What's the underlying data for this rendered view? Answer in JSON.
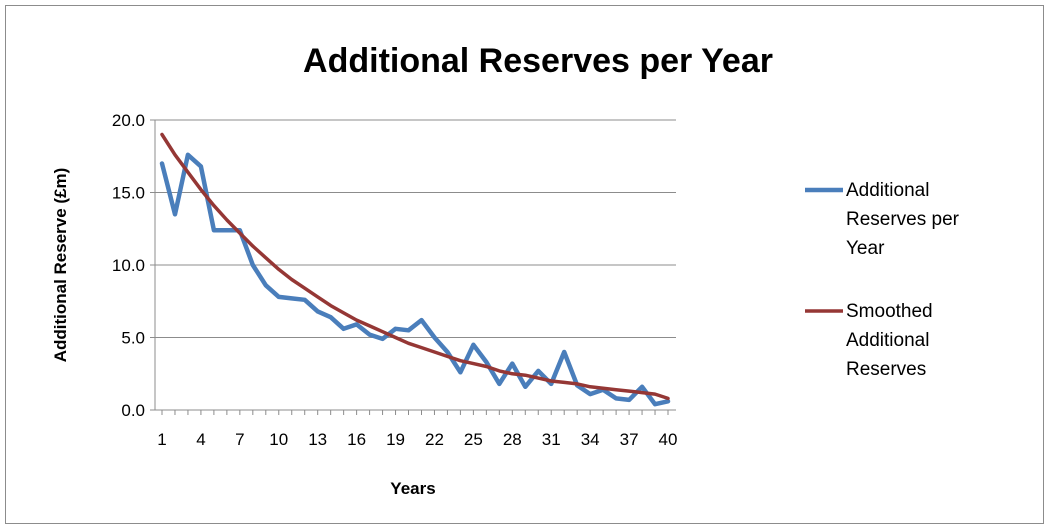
{
  "chart_data": {
    "type": "line",
    "title": "Additional Reserves per Year",
    "xlabel": "Years",
    "ylabel": "Additional Reserve (£m)",
    "ylim": [
      0,
      20
    ],
    "yticks": [
      "0.0",
      "5.0",
      "10.0",
      "15.0",
      "20.0"
    ],
    "y_tick_values": [
      0,
      5,
      10,
      15,
      20
    ],
    "x_tick_labels": [
      "1",
      "4",
      "7",
      "10",
      "13",
      "16",
      "19",
      "22",
      "25",
      "28",
      "31",
      "34",
      "37",
      "40"
    ],
    "x_tick_values": [
      1,
      4,
      7,
      10,
      13,
      16,
      19,
      22,
      25,
      28,
      31,
      34,
      37,
      40
    ],
    "xlim": [
      1,
      40
    ],
    "grid": true,
    "legend_position": "right",
    "x": [
      1,
      2,
      3,
      4,
      5,
      6,
      7,
      8,
      9,
      10,
      11,
      12,
      13,
      14,
      15,
      16,
      17,
      18,
      19,
      20,
      21,
      22,
      23,
      24,
      25,
      26,
      27,
      28,
      29,
      30,
      31,
      32,
      33,
      34,
      35,
      36,
      37,
      38,
      39,
      40
    ],
    "series": [
      {
        "name": "Additional Reserves per Year",
        "color": "#4a7ebb",
        "values": [
          17.0,
          13.5,
          17.6,
          16.8,
          12.4,
          12.4,
          12.4,
          10.0,
          8.6,
          7.8,
          7.7,
          7.6,
          6.8,
          6.4,
          5.6,
          5.9,
          5.2,
          4.9,
          5.6,
          5.5,
          6.2,
          5.0,
          4.0,
          2.6,
          4.5,
          3.3,
          1.8,
          3.2,
          1.6,
          2.7,
          1.8,
          4.0,
          1.7,
          1.1,
          1.4,
          0.8,
          0.7,
          1.6,
          0.4,
          0.6
        ]
      },
      {
        "name": "Smoothed Additional Reserves",
        "color": "#953735",
        "values": [
          19.0,
          17.6,
          16.4,
          15.2,
          14.1,
          13.1,
          12.2,
          11.3,
          10.5,
          9.7,
          9.0,
          8.4,
          7.8,
          7.2,
          6.7,
          6.2,
          5.8,
          5.4,
          5.0,
          4.6,
          4.3,
          4.0,
          3.7,
          3.4,
          3.2,
          3.0,
          2.7,
          2.5,
          2.4,
          2.2,
          2.0,
          1.9,
          1.8,
          1.6,
          1.5,
          1.4,
          1.3,
          1.2,
          1.1,
          0.8
        ]
      }
    ],
    "legend_lines": [
      [
        "Additional",
        "Reserves per",
        "Year"
      ],
      [
        "Smoothed",
        "Additional",
        "Reserves"
      ]
    ]
  }
}
